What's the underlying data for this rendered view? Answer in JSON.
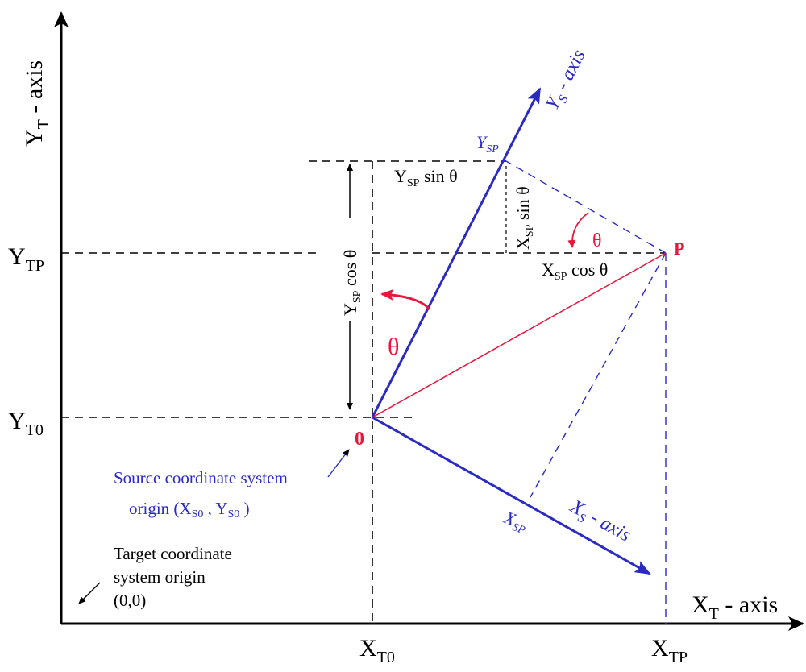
{
  "colors": {
    "axis": "#000000",
    "source_axis": "#2b2bc4",
    "highlight": "#e8173c",
    "guide": "#000000"
  },
  "target_axes": {
    "y_axis": {
      "main": "Y",
      "sub": "T",
      "suffix": " - axis"
    },
    "x_axis": {
      "main": "X",
      "sub": "T",
      "suffix": " - axis"
    }
  },
  "source_axes": {
    "y_axis": {
      "main": "Y",
      "sub": "S",
      "suffix": " - axis"
    },
    "x_axis": {
      "main": "X",
      "sub": "S",
      "suffix": " - axis"
    }
  },
  "tick_labels": {
    "y_tp": {
      "main": "Y",
      "sub": "TP"
    },
    "y_t0": {
      "main": "Y",
      "sub": "T0"
    },
    "x_t0": {
      "main": "X",
      "sub": "T0"
    },
    "x_tp": {
      "main": "X",
      "sub": "TP"
    }
  },
  "point_labels": {
    "y_sp": {
      "main": "Y",
      "sub": "SP"
    },
    "x_sp": {
      "main": "X",
      "sub": "SP"
    },
    "p": "P",
    "zero": "0"
  },
  "angle_labels": {
    "theta_origin": "θ",
    "theta_p": "θ"
  },
  "expressions": {
    "ysp_sin": {
      "main": "Y",
      "sub": "SP",
      "rest": " sin  θ"
    },
    "xsp_sin": {
      "main": "X",
      "sub": "SP",
      "rest": " sin θ"
    },
    "xsp_cos": {
      "main": "X",
      "sub": "SP",
      "rest": " cos θ"
    },
    "ysp_cos": {
      "main": "Y",
      "sub": "SP",
      "rest": " cos θ"
    }
  },
  "annotations": {
    "source_origin": {
      "line1": "Source coordinate system",
      "line2_pre": "origin (X",
      "sub1": "S0",
      "mid": " , Y",
      "sub2": "S0",
      "post": " )"
    },
    "target_origin": {
      "line1": "Target coordinate",
      "line2": "system origin",
      "line3": "(0,0)"
    }
  }
}
